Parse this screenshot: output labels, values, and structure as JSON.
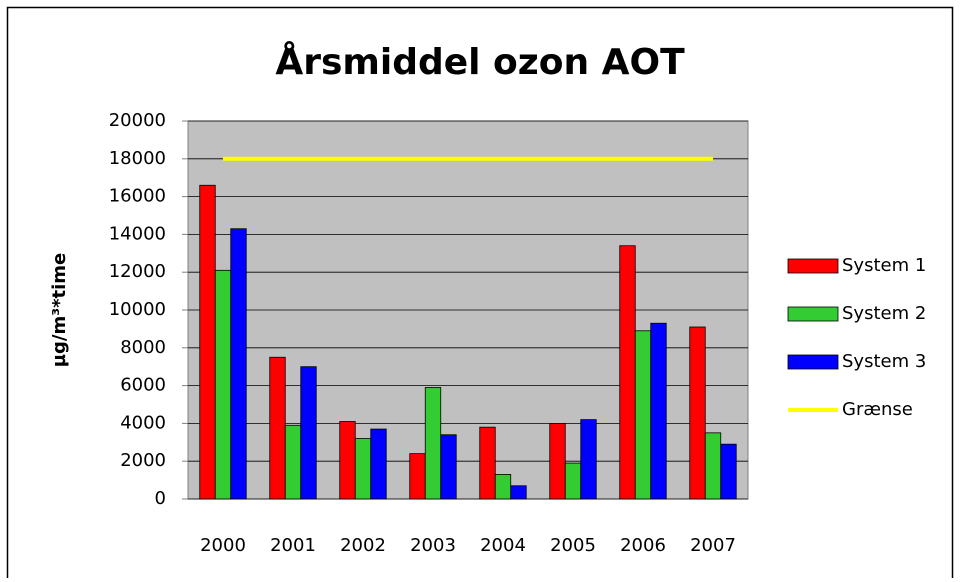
{
  "chart_data": {
    "type": "bar",
    "title": "Årsmiddel ozon AOT",
    "y_label": "µg/m³*time",
    "categories": [
      "2000",
      "2001",
      "2002",
      "2003",
      "2004",
      "2005",
      "2006",
      "2007"
    ],
    "series": [
      {
        "name": "System 1",
        "color": "#ff0000",
        "values": [
          16600,
          7500,
          4100,
          2400,
          3800,
          4000,
          13400,
          9100
        ]
      },
      {
        "name": "System 2",
        "color": "#33cc33",
        "values": [
          12100,
          3900,
          3200,
          5900,
          1300,
          1900,
          8900,
          3500
        ]
      },
      {
        "name": "System 3",
        "color": "#0000ff",
        "values": [
          14300,
          7000,
          3700,
          3400,
          700,
          4200,
          9300,
          2900
        ]
      },
      {
        "name": "Grænse",
        "color": "#ffff00",
        "type": "line",
        "values": [
          18000,
          18000,
          18000,
          18000,
          18000,
          18000,
          18000,
          18000
        ]
      }
    ],
    "ylim": [
      0,
      20000
    ],
    "yticks": [
      0,
      2000,
      4000,
      6000,
      8000,
      10000,
      12000,
      14000,
      16000,
      18000,
      20000
    ],
    "grid": true,
    "legend": "right",
    "plot_background": "#c0c0c0"
  }
}
